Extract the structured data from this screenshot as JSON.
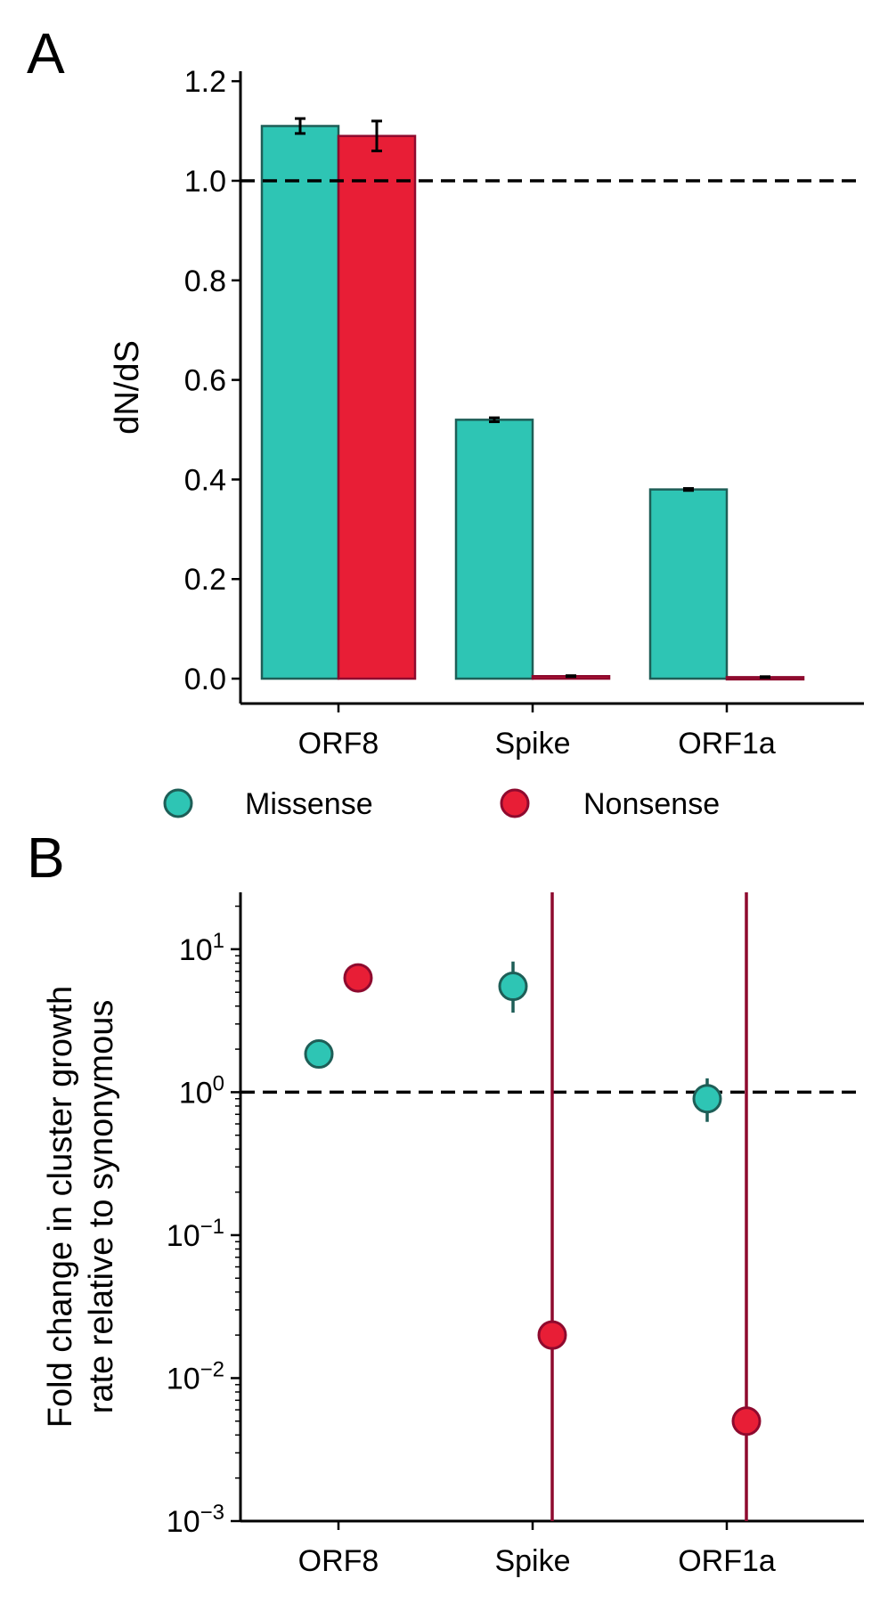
{
  "colors": {
    "missense_fill": "#2ec5b4",
    "missense_edge": "#1e5e57",
    "nonsense_fill": "#e81e36",
    "nonsense_edge": "#8e0a2e",
    "reference_line": "#000000"
  },
  "legend": {
    "items": [
      {
        "label": "Missense",
        "color_key": "missense"
      },
      {
        "label": "Nonsense",
        "color_key": "nonsense"
      }
    ]
  },
  "chart_data": [
    {
      "panel": "A",
      "type": "bar",
      "ylabel": "dN/dS",
      "xlabel": "",
      "categories": [
        "ORF8",
        "Spike",
        "ORF1a"
      ],
      "ylim": [
        -0.05,
        1.22
      ],
      "yticks": [
        0.0,
        0.2,
        0.4,
        0.6,
        0.8,
        1.0,
        1.2
      ],
      "ytick_labels": [
        "0.0",
        "0.2",
        "0.4",
        "0.6",
        "0.8",
        "1.0",
        "1.2"
      ],
      "reference_line": 1.0,
      "series": [
        {
          "name": "Missense",
          "values": [
            1.11,
            0.52,
            0.38
          ],
          "err": [
            0.015,
            0.004,
            0.002
          ]
        },
        {
          "name": "Nonsense",
          "values": [
            1.09,
            0.005,
            0.003
          ],
          "err": [
            0.03,
            0.001,
            0.001
          ]
        }
      ]
    },
    {
      "panel": "B",
      "type": "scatter",
      "ylabel_lines": [
        "Fold change in cluster growth",
        "rate relative to synonymous"
      ],
      "xlabel": "",
      "categories": [
        "ORF8",
        "Spike",
        "ORF1a"
      ],
      "yscale": "log",
      "ylim": [
        0.001,
        25
      ],
      "yticks": [
        0.001,
        0.01,
        0.1,
        1,
        10
      ],
      "ytick_labels": [
        {
          "base": "10",
          "exp": "−3"
        },
        {
          "base": "10",
          "exp": "−2"
        },
        {
          "base": "10",
          "exp": "−1"
        },
        {
          "base": "10",
          "exp": "0"
        },
        {
          "base": "10",
          "exp": "1"
        }
      ],
      "reference_line": 1.0,
      "series": [
        {
          "name": "Missense",
          "values": [
            1.85,
            5.5,
            0.9
          ],
          "err_low": [
            1.75,
            3.6,
            0.62
          ],
          "err_high": [
            1.95,
            8.2,
            1.25
          ]
        },
        {
          "name": "Nonsense",
          "values": [
            6.3,
            0.02,
            0.005
          ],
          "err_low": [
            6.1,
            0.001,
            0.001
          ],
          "err_high": [
            6.5,
            25,
            25
          ]
        }
      ]
    }
  ]
}
